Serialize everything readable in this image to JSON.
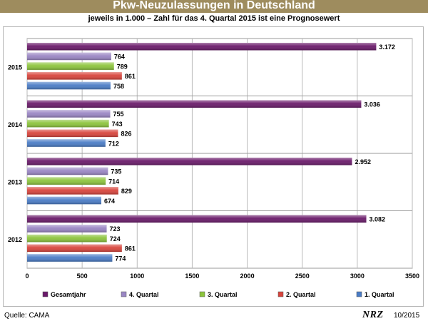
{
  "title": "Pkw-Neuzulassungen in Deutschland",
  "subtitle": "jeweils in 1.000 – Zahl für das 4. Quartal 2015 ist eine Prognosewert",
  "footer": {
    "source": "Quelle: CAMA",
    "logo": "NRZ",
    "date": "10/2015"
  },
  "colors": {
    "Gesamtjahr": "#6a1a6a",
    "4. Quartal": "#9a86c4",
    "3. Quartal": "#8cc43c",
    "2. Quartal": "#d8443c",
    "1. Quartal": "#4a7cc6"
  },
  "chart_data": {
    "type": "bar",
    "orientation": "horizontal",
    "categories": [
      "2015",
      "2014",
      "2013",
      "2012"
    ],
    "series": [
      {
        "name": "Gesamtjahr",
        "values": [
          3172,
          3036,
          2952,
          3082
        ],
        "labels": [
          "3.172",
          "3.036",
          "2.952",
          "3.082"
        ]
      },
      {
        "name": "4. Quartal",
        "values": [
          764,
          755,
          735,
          723
        ],
        "labels": [
          "764",
          "755",
          "735",
          "723"
        ]
      },
      {
        "name": "3. Quartal",
        "values": [
          789,
          743,
          714,
          724
        ],
        "labels": [
          "789",
          "743",
          "714",
          "724"
        ]
      },
      {
        "name": "2. Quartal",
        "values": [
          861,
          826,
          829,
          861
        ],
        "labels": [
          "861",
          "826",
          "829",
          "861"
        ]
      },
      {
        "name": "1. Quartal",
        "values": [
          758,
          712,
          674,
          774
        ],
        "labels": [
          "758",
          "712",
          "674",
          "774"
        ]
      }
    ],
    "xlim": [
      0,
      3500
    ],
    "xticks": [
      0,
      500,
      1000,
      1500,
      2000,
      2500,
      3000,
      3500
    ],
    "grid": true,
    "legend_position": "bottom",
    "legend": [
      "Gesamtjahr",
      "4. Quartal",
      "3. Quartal",
      "2. Quartal",
      "1. Quartal"
    ]
  }
}
